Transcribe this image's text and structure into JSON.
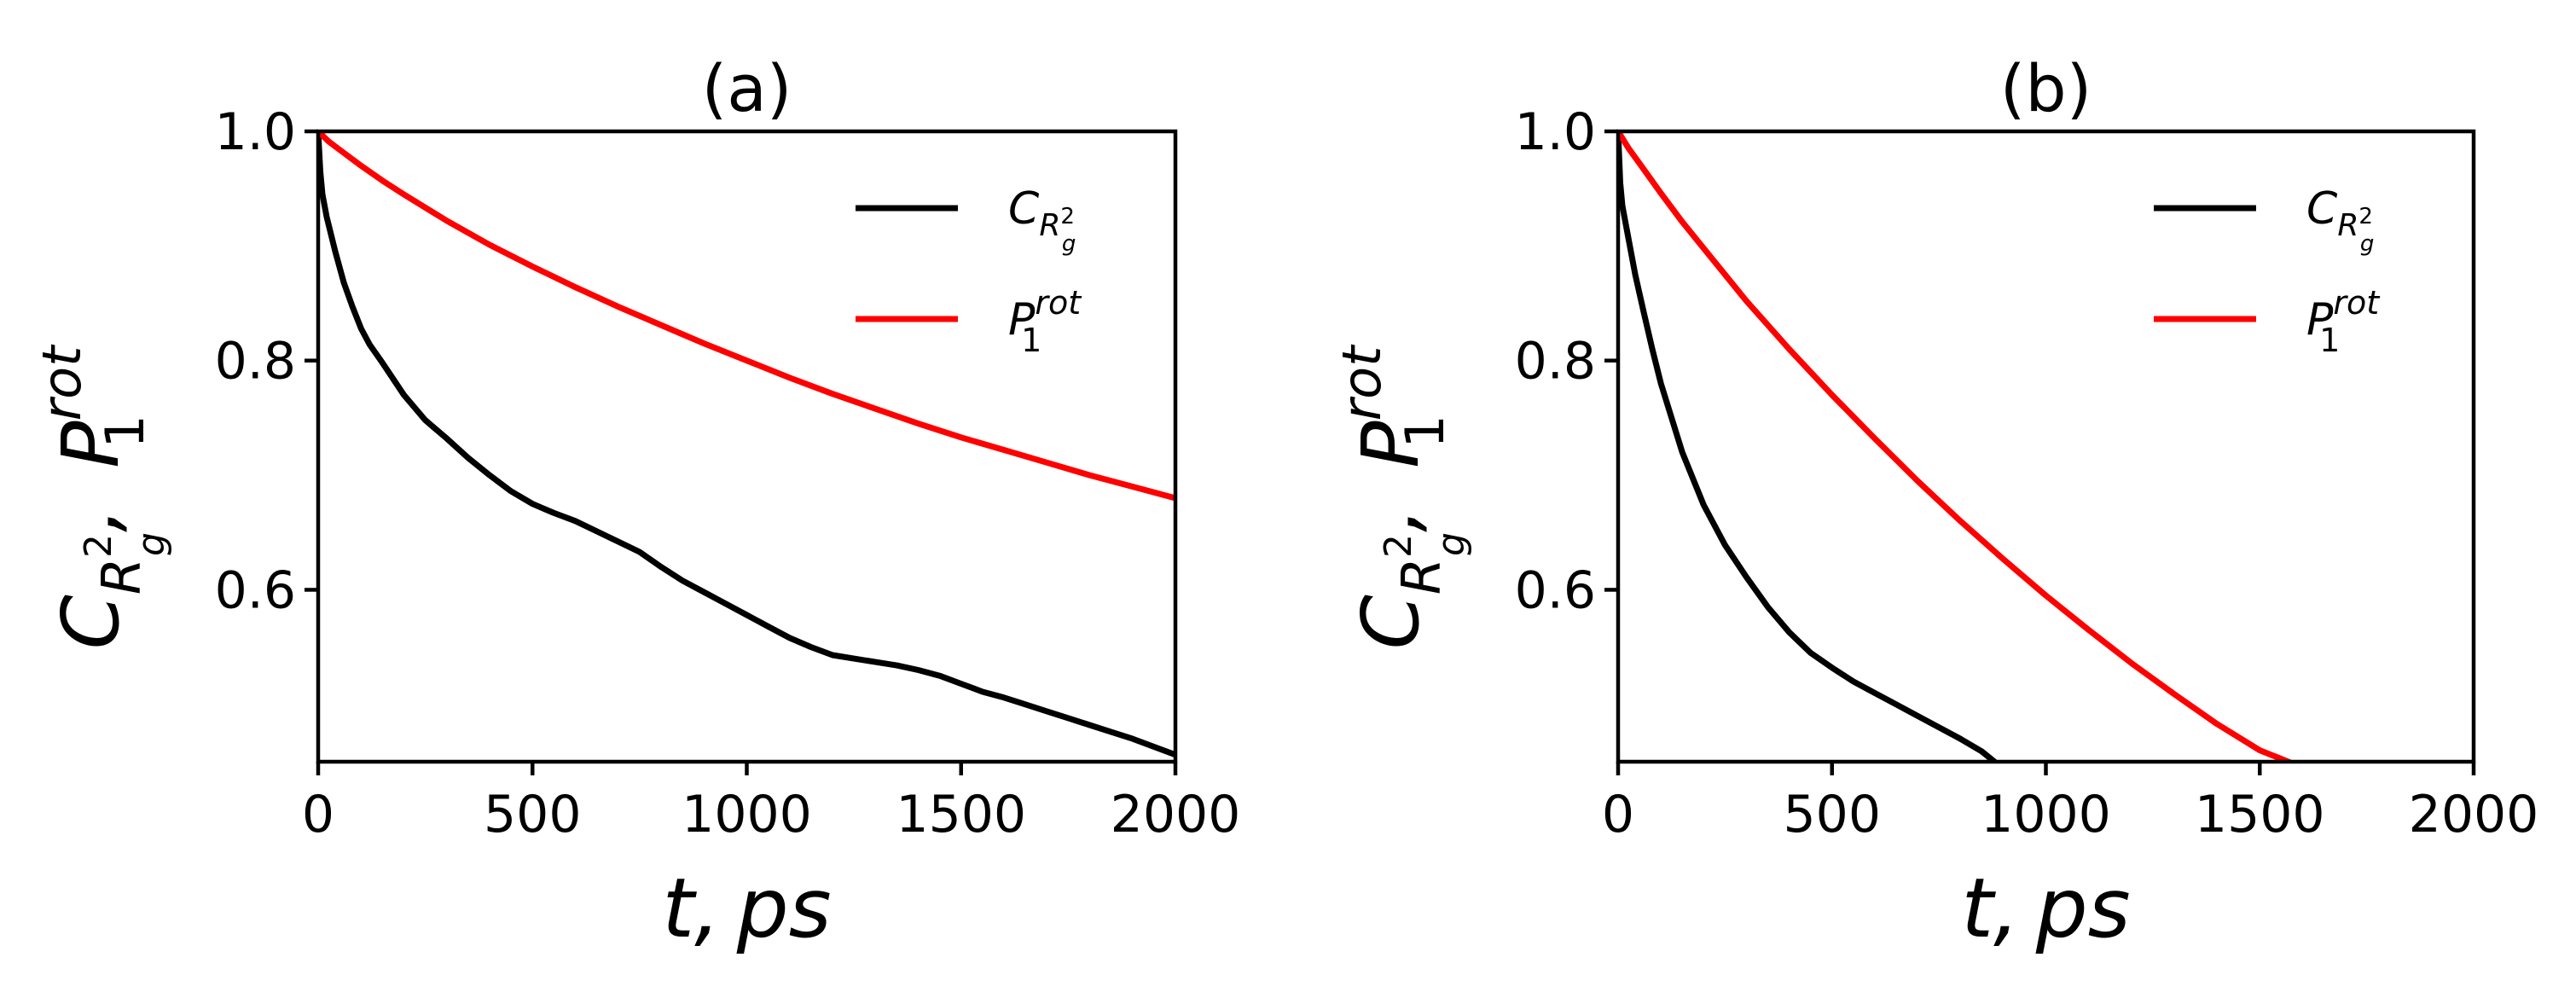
{
  "chart_data": [
    {
      "type": "line",
      "title": "(a)",
      "xlabel": "t, ps",
      "ylabel": "C_{R_g^2}, P_1^{rot}",
      "ylabel_parts": {
        "a": "C",
        "a_sub": "R",
        "a_subsub": "g",
        "a_subsup": "2",
        "sep": ",",
        "b": "P",
        "b_sub": "1",
        "b_sup": "rot"
      },
      "xlim": [
        0,
        2000
      ],
      "ylim": [
        0.45,
        1.0
      ],
      "xticks": [
        0,
        500,
        1000,
        1500,
        2000
      ],
      "xtick_labels": [
        "0",
        "500",
        "1000",
        "1500",
        "2000"
      ],
      "yticks": [
        0.6,
        0.8,
        1.0
      ],
      "ytick_labels": [
        "0.6",
        "0.8",
        "1.0"
      ],
      "legend": "upper right",
      "series": [
        {
          "name": "C_{R_g^2}",
          "label_parts": {
            "main": "C",
            "sub": "R",
            "subsub": "g",
            "subsup": "2"
          },
          "color": "#000000",
          "x": [
            0,
            5,
            10,
            20,
            40,
            60,
            80,
            100,
            120,
            150,
            200,
            250,
            300,
            350,
            400,
            450,
            500,
            550,
            600,
            650,
            700,
            750,
            800,
            850,
            900,
            950,
            1000,
            1050,
            1100,
            1150,
            1200,
            1250,
            1300,
            1350,
            1400,
            1450,
            1500,
            1550,
            1600,
            1650,
            1700,
            1750,
            1800,
            1850,
            1900,
            1950,
            2000
          ],
          "y": [
            1.0,
            0.965,
            0.945,
            0.925,
            0.895,
            0.868,
            0.847,
            0.828,
            0.814,
            0.798,
            0.77,
            0.748,
            0.732,
            0.715,
            0.7,
            0.686,
            0.675,
            0.667,
            0.66,
            0.651,
            0.642,
            0.633,
            0.62,
            0.608,
            0.598,
            0.588,
            0.578,
            0.568,
            0.558,
            0.55,
            0.543,
            0.54,
            0.537,
            0.534,
            0.53,
            0.525,
            0.518,
            0.511,
            0.506,
            0.5,
            0.494,
            0.488,
            0.482,
            0.476,
            0.47,
            0.463,
            0.456
          ]
        },
        {
          "name": "P_1^{rot}",
          "label_parts": {
            "main": "P",
            "sub": "1",
            "sup": "rot"
          },
          "color": "#ff0000",
          "x": [
            0,
            25,
            50,
            100,
            150,
            200,
            300,
            400,
            500,
            600,
            700,
            800,
            900,
            1000,
            1100,
            1200,
            1300,
            1400,
            1500,
            1600,
            1700,
            1800,
            1900,
            2000
          ],
          "y": [
            1.0,
            0.991,
            0.984,
            0.97,
            0.957,
            0.945,
            0.922,
            0.901,
            0.882,
            0.864,
            0.847,
            0.831,
            0.815,
            0.8,
            0.785,
            0.771,
            0.758,
            0.745,
            0.733,
            0.722,
            0.711,
            0.7,
            0.69,
            0.68
          ]
        }
      ]
    },
    {
      "type": "line",
      "title": "(b)",
      "xlabel": "t, ps",
      "ylabel": "C_{R_g^2}, P_1^{rot}",
      "ylabel_parts": {
        "a": "C",
        "a_sub": "R",
        "a_subsub": "g",
        "a_subsup": "2",
        "sep": ",",
        "b": "P",
        "b_sub": "1",
        "b_sup": "rot"
      },
      "xlim": [
        0,
        2000
      ],
      "ylim": [
        0.45,
        1.0
      ],
      "xticks": [
        0,
        500,
        1000,
        1500,
        2000
      ],
      "xtick_labels": [
        "0",
        "500",
        "1000",
        "1500",
        "2000"
      ],
      "yticks": [
        0.6,
        0.8,
        1.0
      ],
      "ytick_labels": [
        "0.6",
        "0.8",
        "1.0"
      ],
      "legend": "upper right",
      "series": [
        {
          "name": "C_{R_g^2}",
          "label_parts": {
            "main": "C",
            "sub": "R",
            "subsub": "g",
            "subsup": "2"
          },
          "color": "#000000",
          "x": [
            0,
            5,
            10,
            20,
            40,
            60,
            80,
            100,
            150,
            200,
            250,
            300,
            350,
            400,
            450,
            500,
            550,
            600,
            650,
            700,
            750,
            800,
            850,
            880
          ],
          "y": [
            1.0,
            0.955,
            0.935,
            0.915,
            0.875,
            0.842,
            0.81,
            0.78,
            0.72,
            0.674,
            0.639,
            0.611,
            0.585,
            0.563,
            0.545,
            0.532,
            0.52,
            0.51,
            0.5,
            0.49,
            0.48,
            0.47,
            0.459,
            0.45
          ]
        },
        {
          "name": "P_1^{rot}",
          "label_parts": {
            "main": "P",
            "sub": "1",
            "sup": "rot"
          },
          "color": "#ff0000",
          "x": [
            0,
            25,
            50,
            100,
            150,
            200,
            300,
            400,
            500,
            600,
            700,
            800,
            900,
            1000,
            1100,
            1200,
            1300,
            1400,
            1500,
            1580
          ],
          "y": [
            1.0,
            0.985,
            0.972,
            0.946,
            0.921,
            0.898,
            0.852,
            0.81,
            0.77,
            0.732,
            0.695,
            0.66,
            0.627,
            0.595,
            0.565,
            0.536,
            0.509,
            0.483,
            0.46,
            0.448
          ]
        }
      ]
    }
  ]
}
